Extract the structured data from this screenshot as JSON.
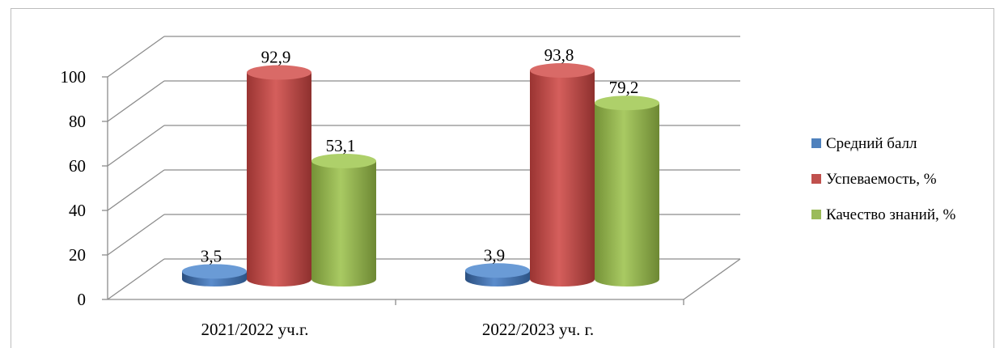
{
  "chart_data": {
    "type": "bar",
    "title": "",
    "xlabel": "",
    "ylabel": "",
    "categories": [
      "2021/2022 уч.г.",
      "2022/2023 уч. г."
    ],
    "ylim": [
      0,
      100
    ],
    "yticks": [
      "0",
      "20",
      "40",
      "60",
      "80",
      "100"
    ],
    "grid": true,
    "legend_position": "right",
    "series": [
      {
        "name": "Средний балл",
        "values": [
          3.5,
          3.9
        ],
        "labels": [
          "3,5",
          "3,9"
        ],
        "color": "#4f81bd"
      },
      {
        "name": "Успеваемость, %",
        "values": [
          92.9,
          93.8
        ],
        "labels": [
          "92,9",
          "93,8"
        ],
        "color": "#c0504d"
      },
      {
        "name": "Качество знаний, %",
        "values": [
          53.1,
          79.2
        ],
        "labels": [
          "53,1",
          "79,2"
        ],
        "color": "#9bbb59"
      }
    ]
  }
}
